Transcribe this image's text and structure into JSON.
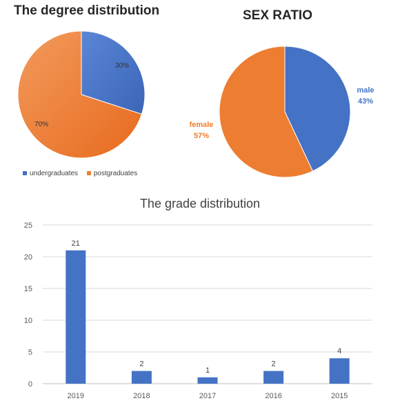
{
  "chart_data": [
    {
      "type": "pie",
      "title": "The degree distribution",
      "labels": [
        "undergraduates",
        "postgraduates"
      ],
      "values": [
        30,
        70
      ],
      "value_labels": [
        "30%",
        "70%"
      ],
      "colors": [
        "#4472C4",
        "#ED7D31"
      ],
      "legend": "bottom-left"
    },
    {
      "type": "pie",
      "title": "SEX RATIO",
      "labels": [
        "male",
        "female"
      ],
      "values": [
        43,
        57
      ],
      "value_labels": [
        "43%",
        "57%"
      ],
      "colors": [
        "#4472C4",
        "#ED7D31"
      ]
    },
    {
      "type": "bar",
      "title": "The grade distribution",
      "categories": [
        "2019",
        "2018",
        "2017",
        "2016",
        "2015"
      ],
      "values": [
        21,
        2,
        1,
        2,
        4
      ],
      "ylim": [
        0,
        25
      ],
      "yticks": [
        0,
        5,
        10,
        15,
        20,
        25
      ],
      "grid": true,
      "color": "#4472C4"
    }
  ]
}
